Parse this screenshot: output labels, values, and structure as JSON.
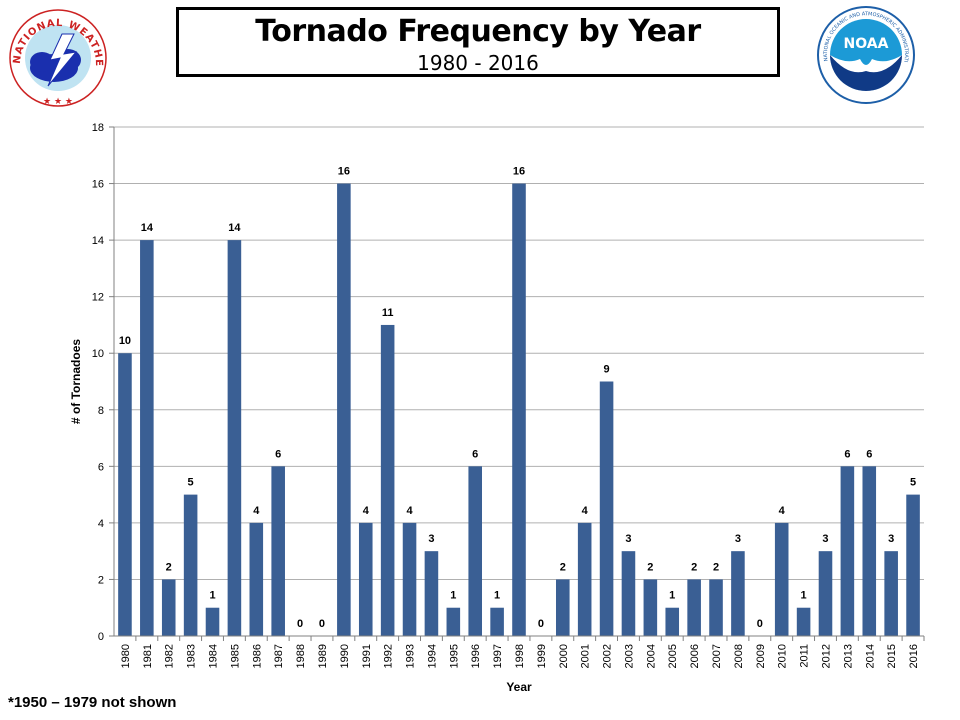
{
  "header": {
    "title": "Tornado Frequency by Year",
    "subtitle": "1980 - 2016"
  },
  "logos": {
    "left": {
      "text": "NATIONAL WEATHER SERVICE",
      "icon": "nws-logo-icon"
    },
    "right": {
      "text": "NATIONAL OCEANIC AND ATMOSPHERIC ADMINISTRATION · U.S. DEPARTMENT OF COMMERCE",
      "badge": "NOAA",
      "icon": "noaa-logo-icon"
    }
  },
  "footnote": "*1950 – 1979 not shown",
  "colors": {
    "bar": "#3a5f94",
    "grid": "#b0b0b0",
    "axis": "#808080"
  },
  "chart_data": {
    "type": "bar",
    "title": "Tornado Frequency by Year",
    "subtitle": "1980 - 2016",
    "xlabel": "Year",
    "ylabel": "# of Tornadoes",
    "ylim": [
      0,
      18
    ],
    "yticks": [
      0,
      2,
      4,
      6,
      8,
      10,
      12,
      14,
      16,
      18
    ],
    "grid": true,
    "categories": [
      "1980",
      "1981",
      "1982",
      "1983",
      "1984",
      "1985",
      "1986",
      "1987",
      "1988",
      "1989",
      "1990",
      "1991",
      "1992",
      "1993",
      "1994",
      "1995",
      "1996",
      "1997",
      "1998",
      "1999",
      "2000",
      "2001",
      "2002",
      "2003",
      "2004",
      "2005",
      "2006",
      "2007",
      "2008",
      "2009",
      "2010",
      "2011",
      "2012",
      "2013",
      "2014",
      "2015",
      "2016"
    ],
    "values": [
      10,
      14,
      2,
      5,
      1,
      14,
      4,
      6,
      0,
      0,
      16,
      4,
      11,
      4,
      3,
      1,
      6,
      1,
      16,
      0,
      2,
      4,
      9,
      3,
      2,
      1,
      2,
      2,
      3,
      0,
      4,
      1,
      3,
      6,
      6,
      3,
      5
    ]
  }
}
